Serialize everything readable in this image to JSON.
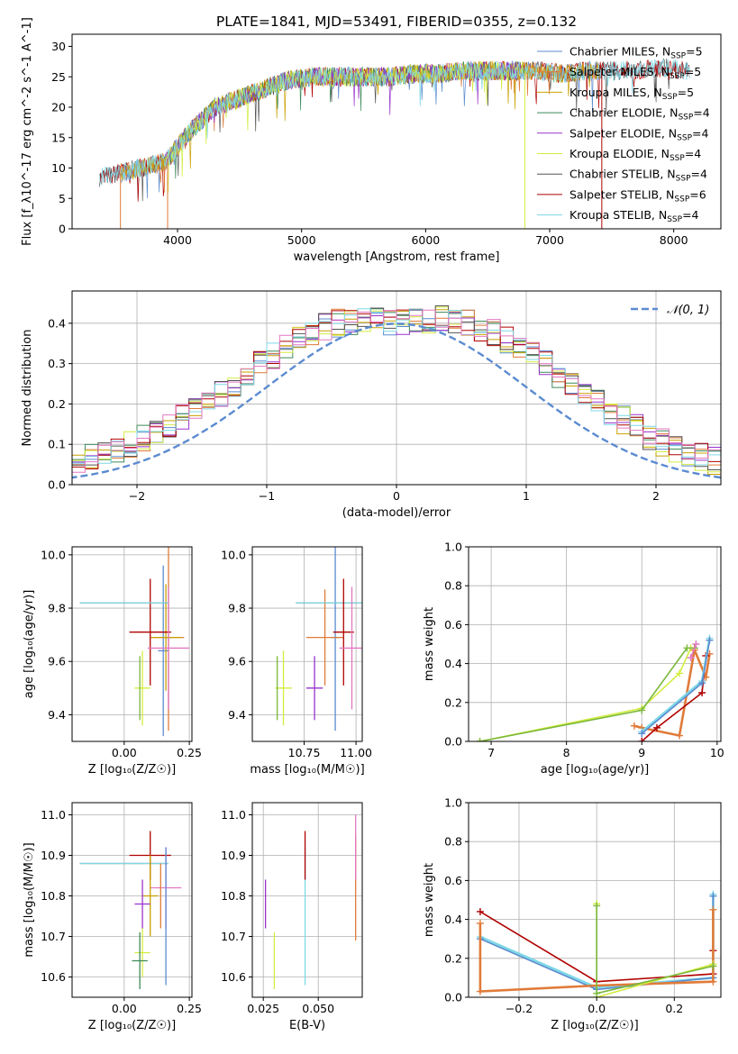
{
  "title": "PLATE=1841, MJD=53491, FIBERID=0355, z=0.132",
  "colors": {
    "chabrier_miles": "#5b8bd0",
    "salpeter_miles": "#e07b39",
    "kroupa_miles": "#c8a000",
    "chabrier_elodie": "#3f8a5a",
    "salpeter_elodie": "#9933cc",
    "kroupa_elodie": "#d4ec40",
    "chabrier_stelib": "#555555",
    "salpeter_stelib": "#b00000",
    "kroupa_stelib": "#7fd8e6",
    "normal": "#5b8bd0",
    "pink": "#e377c2",
    "olive": "#7ab83c"
  },
  "chart_data": [
    {
      "type": "line",
      "xlabel": "wavelength [Angstrom, rest frame]",
      "ylabel": "Flux [f_λ10^-17 erg cm^-2 s^-1 A^-1]",
      "xlim": [
        3150,
        8380
      ],
      "ylim": [
        0,
        32
      ],
      "xticks": [
        4000,
        5000,
        6000,
        7000,
        8000
      ],
      "yticks": [
        0,
        5,
        10,
        15,
        20,
        25,
        30
      ],
      "legend_position": "right",
      "spectrum_anchors": {
        "x": [
          3370,
          3500,
          3700,
          3900,
          4100,
          4300,
          4500,
          4700,
          4900,
          5100,
          5300,
          5500,
          5700,
          5900,
          6100,
          6300,
          6500,
          6700,
          6900,
          7100,
          7300,
          7500,
          7700,
          7900,
          8130
        ],
        "y": [
          8.5,
          9,
          10,
          11,
          16,
          20,
          21.5,
          23,
          24.5,
          25,
          25,
          25,
          25,
          25.5,
          25.5,
          26,
          26,
          26,
          26,
          25.5,
          26,
          26,
          26,
          26.5,
          26
        ]
      },
      "series": [
        {
          "name": "Chabrier MILES",
          "nssp": "5",
          "range": [
            3540,
            7400
          ]
        },
        {
          "name": "Salpeter MILES",
          "nssp": "5",
          "range": [
            3540,
            7400
          ]
        },
        {
          "name": "Kroupa MILES",
          "nssp": "5",
          "range": [
            3540,
            7400
          ]
        },
        {
          "name": "Chabrier ELODIE",
          "nssp": "4",
          "range": [
            3900,
            6800
          ]
        },
        {
          "name": "Salpeter ELODIE",
          "nssp": "4",
          "range": [
            3900,
            6800
          ]
        },
        {
          "name": "Kroupa ELODIE",
          "nssp": "4",
          "range": [
            3900,
            6800
          ]
        },
        {
          "name": "Chabrier STELIB",
          "nssp": "4",
          "range": [
            3370,
            8130
          ]
        },
        {
          "name": "Salpeter STELIB",
          "nssp": "6",
          "range": [
            3370,
            8130
          ]
        },
        {
          "name": "Kroupa STELIB",
          "nssp": "4",
          "range": [
            3370,
            8130
          ]
        }
      ]
    },
    {
      "type": "bar",
      "xlabel": "(data-model)/error",
      "ylabel": "Normed distribution",
      "xlim": [
        -2.5,
        2.5
      ],
      "ylim": [
        0,
        0.48
      ],
      "xticks": [
        -2,
        -1,
        0,
        1,
        2
      ],
      "yticks": [
        0.0,
        0.1,
        0.2,
        0.3,
        0.4
      ],
      "grid": true,
      "legend_position": "top-right",
      "normal_label": "𝒩(0, 1)",
      "bin_width": 0.1,
      "histogram_envelope": [
        0.01,
        0.02,
        0.03,
        0.035,
        0.04,
        0.045,
        0.055,
        0.065,
        0.075,
        0.085,
        0.1,
        0.115,
        0.13,
        0.15,
        0.17,
        0.185,
        0.2,
        0.225,
        0.25,
        0.27,
        0.3,
        0.32,
        0.34,
        0.36,
        0.375,
        0.39,
        0.4,
        0.405,
        0.41,
        0.41,
        0.405,
        0.4,
        0.405,
        0.41,
        0.41,
        0.405,
        0.4,
        0.39,
        0.375,
        0.36,
        0.34,
        0.32,
        0.3,
        0.27,
        0.25,
        0.225,
        0.2,
        0.18,
        0.16,
        0.14,
        0.12,
        0.105,
        0.09,
        0.08,
        0.07,
        0.06,
        0.05,
        0.04,
        0.03,
        0.025,
        0.02,
        0.015
      ]
    },
    {
      "type": "scatter",
      "xlabel": "Z [log₁₀(Z/Z☉)]",
      "ylabel": "age [log₁₀(age/yr)]",
      "xlim": [
        -0.2,
        0.26
      ],
      "ylim": [
        9.3,
        10.03
      ],
      "xticks": [
        0.0,
        0.25
      ],
      "yticks": [
        9.4,
        9.6,
        9.8,
        10.0
      ],
      "grid": true,
      "points": [
        {
          "x": 0.17,
          "y": 9.69,
          "ex": 0.06,
          "ey": 0.35,
          "c": "salpeter_miles"
        },
        {
          "x": 0.15,
          "y": 9.64,
          "ex": 0.02,
          "ey": 0.32,
          "c": "chabrier_miles"
        },
        {
          "x": 0.16,
          "y": 9.69,
          "ex": 0.06,
          "ey": 0.2,
          "c": "kroupa_miles"
        },
        {
          "x": 0.1,
          "y": 9.71,
          "ex": 0.08,
          "ey": 0.2,
          "c": "salpeter_stelib"
        },
        {
          "x": 0.17,
          "y": 9.65,
          "ex": 0.08,
          "ey": 0.23,
          "c": "pink"
        },
        {
          "x": 0.0,
          "y": 9.82,
          "ex": 0.17,
          "ey": 0.0,
          "c": "chabrier_stelib"
        },
        {
          "x": 0.0,
          "y": 9.82,
          "ex": 0.17,
          "ey": 0.0,
          "c": "kroupa_stelib"
        },
        {
          "x": 0.07,
          "y": 9.5,
          "ex": 0.03,
          "ey": 0.14,
          "c": "kroupa_elodie"
        },
        {
          "x": 0.06,
          "y": 9.5,
          "ex": 0.0,
          "ey": 0.12,
          "c": "olive"
        }
      ]
    },
    {
      "type": "scatter",
      "xlabel": "mass [log₁₀(M/M☉)]",
      "ylabel": "",
      "xlim": [
        10.5,
        11.03
      ],
      "ylim": [
        9.3,
        10.03
      ],
      "xticks": [
        10.75,
        11.0
      ],
      "yticks": [
        9.4,
        9.6,
        9.8,
        10.0
      ],
      "grid": true,
      "points": [
        {
          "x": 10.9,
          "y": 9.69,
          "ex": 0.02,
          "ey": 0.35,
          "c": "chabrier_miles"
        },
        {
          "x": 10.85,
          "y": 9.69,
          "ex": 0.09,
          "ey": 0.18,
          "c": "salpeter_miles"
        },
        {
          "x": 10.88,
          "y": 9.82,
          "ex": 0.17,
          "ey": 0.0,
          "c": "chabrier_stelib"
        },
        {
          "x": 10.88,
          "y": 9.82,
          "ex": 0.17,
          "ey": 0.0,
          "c": "kroupa_stelib"
        },
        {
          "x": 10.94,
          "y": 9.71,
          "ex": 0.05,
          "ey": 0.2,
          "c": "salpeter_stelib"
        },
        {
          "x": 10.98,
          "y": 9.65,
          "ex": 0.06,
          "ey": 0.23,
          "c": "pink"
        },
        {
          "x": 10.65,
          "y": 9.5,
          "ex": 0.04,
          "ey": 0.14,
          "c": "kroupa_elodie"
        },
        {
          "x": 10.8,
          "y": 9.5,
          "ex": 0.04,
          "ey": 0.12,
          "c": "salpeter_elodie"
        },
        {
          "x": 10.62,
          "y": 9.5,
          "ex": 0.0,
          "ey": 0.12,
          "c": "olive"
        }
      ]
    },
    {
      "type": "line",
      "xlabel": "age [log₁₀(age/yr)]",
      "ylabel": "mass weight",
      "xlim": [
        6.7,
        10.05
      ],
      "ylim": [
        0,
        1
      ],
      "xticks": [
        7,
        8,
        9,
        10
      ],
      "yticks": [
        0.0,
        0.2,
        0.4,
        0.6,
        0.8,
        1.0
      ],
      "grid": true,
      "series": [
        {
          "c": "kroupa_elodie",
          "x": [
            6.85,
            9.0,
            9.5,
            9.65
          ],
          "y": [
            0.0,
            0.17,
            0.35,
            0.48
          ]
        },
        {
          "c": "olive",
          "x": [
            6.85,
            9.0,
            9.6,
            9.7
          ],
          "y": [
            0.0,
            0.16,
            0.48,
            0.48
          ]
        },
        {
          "c": "salpeter_miles",
          "x": [
            8.9,
            9.0,
            9.5,
            9.7,
            9.85,
            9.9
          ],
          "y": [
            0.08,
            0.07,
            0.03,
            0.47,
            0.33,
            0.45
          ]
        },
        {
          "c": "salpeter_stelib",
          "x": [
            9.0,
            9.2,
            9.8,
            9.85
          ],
          "y": [
            0.0,
            0.07,
            0.25,
            0.44
          ]
        },
        {
          "c": "kroupa_stelib",
          "x": [
            9.0,
            9.8,
            9.9
          ],
          "y": [
            0.05,
            0.31,
            0.53
          ]
        },
        {
          "c": "chabrier_miles",
          "x": [
            9.0,
            9.8,
            9.9
          ],
          "y": [
            0.04,
            0.3,
            0.52
          ]
        },
        {
          "c": "pink",
          "x": [
            9.65,
            9.72
          ],
          "y": [
            0.43,
            0.5
          ]
        }
      ]
    },
    {
      "type": "scatter",
      "xlabel": "Z [log₁₀(Z/Z☉)]",
      "ylabel": "mass [log₁₀(M/M☉)]",
      "xlim": [
        -0.2,
        0.26
      ],
      "ylim": [
        10.55,
        11.03
      ],
      "xticks": [
        0.0,
        0.25
      ],
      "yticks": [
        10.6,
        10.7,
        10.8,
        10.9,
        11.0
      ],
      "grid": true,
      "points": [
        {
          "x": 0.0,
          "y": 10.88,
          "ex": 0.17,
          "ey": 0.0,
          "c": "chabrier_stelib"
        },
        {
          "x": 0.0,
          "y": 10.88,
          "ex": 0.17,
          "ey": 0.0,
          "c": "kroupa_stelib"
        },
        {
          "x": 0.1,
          "y": 10.9,
          "ex": 0.08,
          "ey": 0.06,
          "c": "salpeter_stelib"
        },
        {
          "x": 0.16,
          "y": 10.82,
          "ex": 0.06,
          "ey": 0.1,
          "c": "pink"
        },
        {
          "x": 0.1,
          "y": 10.8,
          "ex": 0.03,
          "ey": 0.1,
          "c": "kroupa_miles"
        },
        {
          "x": 0.14,
          "y": 10.8,
          "ex": 0.0,
          "ey": 0.08,
          "c": "salpeter_miles"
        },
        {
          "x": 0.16,
          "y": 10.75,
          "ex": 0.0,
          "ey": 0.17,
          "c": "chabrier_miles"
        },
        {
          "x": 0.07,
          "y": 10.78,
          "ex": 0.03,
          "ey": 0.06,
          "c": "salpeter_elodie"
        },
        {
          "x": 0.07,
          "y": 10.66,
          "ex": 0.03,
          "ey": 0.06,
          "c": "kroupa_elodie"
        },
        {
          "x": 0.06,
          "y": 10.64,
          "ex": 0.03,
          "ey": 0.07,
          "c": "chabrier_elodie"
        }
      ]
    },
    {
      "type": "scatter",
      "xlabel": "E(B-V)",
      "ylabel": "",
      "xlim": [
        0.02,
        0.07
      ],
      "ylim": [
        10.55,
        11.03
      ],
      "xticks": [
        0.025,
        0.05
      ],
      "yticks": [
        10.6,
        10.7,
        10.8,
        10.9,
        11.0
      ],
      "grid": true,
      "points": [
        {
          "x": 0.026,
          "y": 10.78,
          "ex": 0.0,
          "ey": 0.06,
          "c": "salpeter_elodie"
        },
        {
          "x": 0.03,
          "y": 10.64,
          "ex": 0.0,
          "ey": 0.07,
          "c": "kroupa_elodie"
        },
        {
          "x": 0.044,
          "y": 10.75,
          "ex": 0.0,
          "ey": 0.17,
          "c": "kroupa_stelib"
        },
        {
          "x": 0.044,
          "y": 10.9,
          "ex": 0.0,
          "ey": 0.06,
          "c": "salpeter_stelib"
        },
        {
          "x": 0.067,
          "y": 10.82,
          "ex": 0.0,
          "ey": 0.13,
          "c": "salpeter_miles"
        },
        {
          "x": 0.067,
          "y": 10.92,
          "ex": 0.0,
          "ey": 0.08,
          "c": "pink"
        }
      ]
    },
    {
      "type": "line",
      "xlabel": "Z [log₁₀(Z/Z☉)]",
      "ylabel": "mass weight",
      "xlim": [
        -0.33,
        0.32
      ],
      "ylim": [
        0,
        1
      ],
      "xticks": [
        -0.2,
        0.0,
        0.2
      ],
      "yticks": [
        0.0,
        0.2,
        0.4,
        0.6,
        0.8,
        1.0
      ],
      "grid": true,
      "series": [
        {
          "c": "salpeter_stelib",
          "x": [
            -0.3,
            0.0,
            0.3,
            0.3
          ],
          "y": [
            0.44,
            0.08,
            0.12,
            0.24
          ]
        },
        {
          "c": "kroupa_stelib",
          "x": [
            -0.3,
            0.0,
            0.3,
            0.3
          ],
          "y": [
            0.31,
            0.05,
            0.1,
            0.53
          ]
        },
        {
          "c": "chabrier_miles",
          "x": [
            -0.3,
            0.0,
            0.3,
            0.3
          ],
          "y": [
            0.3,
            0.04,
            0.1,
            0.52
          ]
        },
        {
          "c": "salpeter_miles",
          "x": [
            -0.3,
            -0.3,
            0.0,
            0.3,
            0.3
          ],
          "y": [
            0.38,
            0.03,
            0.06,
            0.08,
            0.45
          ]
        },
        {
          "c": "kroupa_elodie",
          "x": [
            0.0,
            0.0,
            0.3
          ],
          "y": [
            0.48,
            0.0,
            0.17
          ]
        },
        {
          "c": "olive",
          "x": [
            0.0,
            0.0,
            0.3
          ],
          "y": [
            0.47,
            0.02,
            0.16
          ]
        }
      ]
    }
  ]
}
